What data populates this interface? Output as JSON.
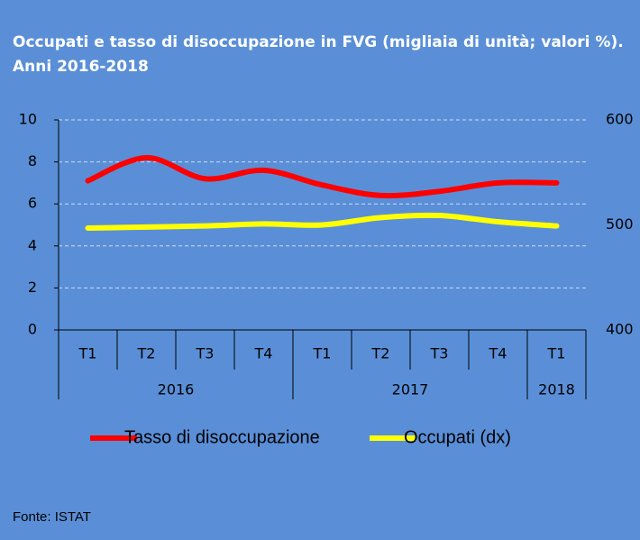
{
  "chart_data": {
    "type": "line",
    "title": "Occupati e tasso di disoccupazione in FVG (migliaia di unità; valori %). Anni 2016-2018",
    "categories": [
      "T1",
      "T2",
      "T3",
      "T4",
      "T1",
      "T2",
      "T3",
      "T4",
      "T1"
    ],
    "groups": [
      {
        "label": "2016",
        "span": 4
      },
      {
        "label": "2017",
        "span": 4
      },
      {
        "label": "2018",
        "span": 1
      }
    ],
    "series": [
      {
        "name": "Tasso di disoccupazione",
        "color": "#ff0000",
        "values": [
          7.1,
          8.2,
          7.2,
          7.6,
          6.9,
          6.4,
          6.6,
          7.0,
          7.0
        ]
      },
      {
        "name": "Occupati (dx)",
        "color": "#ffff00",
        "axis": "y2",
        "values": [
          497,
          498,
          499,
          501,
          500,
          507,
          509,
          503,
          499
        ]
      }
    ],
    "ylim": [
      0,
      10
    ],
    "yticks": [
      0,
      2,
      4,
      6,
      8,
      10
    ],
    "y2lim": [
      400,
      600
    ],
    "y2ticks": [
      400,
      500,
      600
    ],
    "grid": true,
    "source": "Fonte: ISTAT"
  }
}
